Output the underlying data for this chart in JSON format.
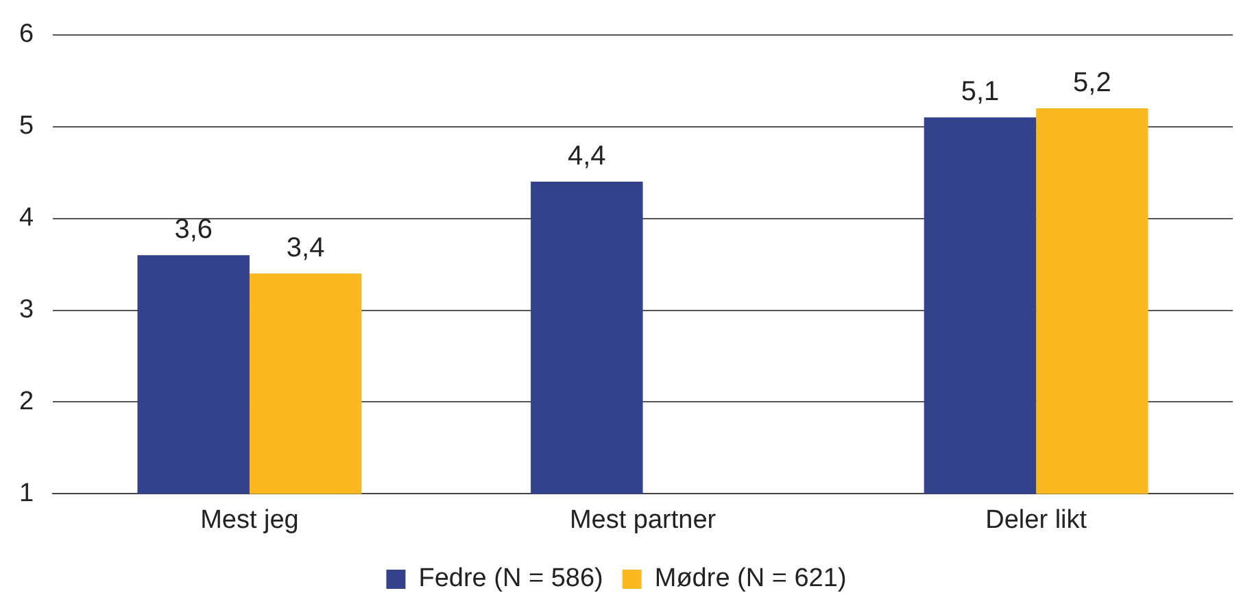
{
  "chart_data": {
    "type": "bar",
    "categories": [
      "Mest jeg",
      "Mest partner",
      "Deler likt"
    ],
    "series": [
      {
        "name": "Fedre (N = 586)",
        "color": "#33428a",
        "values": [
          3.6,
          4.4,
          5.1
        ],
        "value_labels": [
          "3,6",
          "4,4",
          "5,1"
        ]
      },
      {
        "name": "Mødre (N = 621)",
        "color": "#fbb920",
        "values": [
          3.4,
          null,
          5.2
        ],
        "value_labels": [
          "3,4",
          null,
          "5,2"
        ]
      }
    ],
    "ylim": [
      1,
      6
    ],
    "yticks": [
      1,
      2,
      3,
      4,
      5,
      6
    ],
    "grid": "y",
    "legend": "bottom"
  }
}
